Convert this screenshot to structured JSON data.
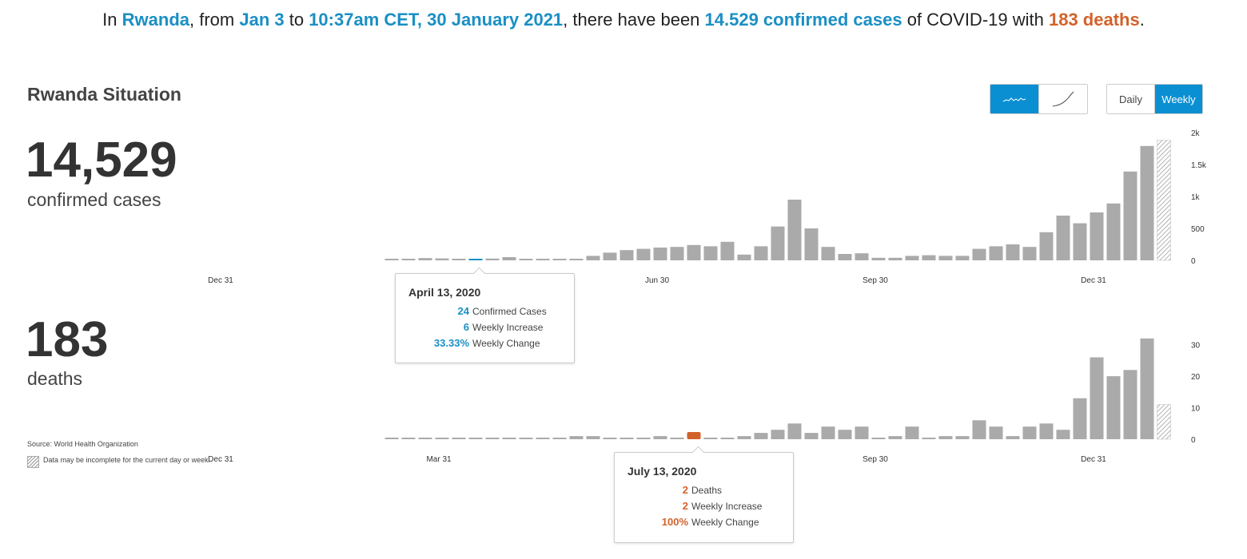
{
  "headline": {
    "prefix": "In ",
    "country": "Rwanda",
    "from_text": ", from ",
    "start_date": "Jan 3",
    "to_text": " to ",
    "end_time": "10:37am CET, 30 January 2021",
    "mid_text": ", there have been ",
    "cases_text": "14.529 confirmed cases",
    "of_text": " of COVID-19 with ",
    "deaths_text": "183 deaths",
    "suffix": "."
  },
  "colors": {
    "accent": "#0b8fd3",
    "cases": "#1a8fc4",
    "deaths": "#d2622b",
    "bar": "#aaaaaa"
  },
  "title": "Rwanda Situation",
  "cases": {
    "number": "14,529",
    "label": "confirmed cases"
  },
  "deaths": {
    "number": "183",
    "label": "deaths"
  },
  "controls": {
    "mode_icons": [
      "sparkline-icon",
      "cumulative-curve-icon"
    ],
    "mode_active": 0,
    "periods": [
      "Daily",
      "Weekly"
    ],
    "period_active": "Weekly"
  },
  "source": "Source: World Health Organization",
  "incomplete_note": "Data may be incomplete for the current day or week.",
  "tooltip_cases": {
    "date": "April 13, 2020",
    "rows": [
      {
        "value": "24",
        "label": "Confirmed Cases"
      },
      {
        "value": "6",
        "label": "Weekly Increase"
      },
      {
        "value": "33.33%",
        "label": "Weekly Change"
      }
    ]
  },
  "tooltip_deaths": {
    "date": "July 13, 2020",
    "rows": [
      {
        "value": "2",
        "label": "Deaths"
      },
      {
        "value": "2",
        "label": "Weekly Increase"
      },
      {
        "value": "100%",
        "label": "Weekly Change"
      }
    ]
  },
  "chart_data": [
    {
      "type": "bar",
      "id": "cases",
      "xlabel": "",
      "ylabel": "",
      "ylim": [
        0,
        2000
      ],
      "ytick_labels": [
        "0",
        "500",
        "1k",
        "1.5k",
        "2k"
      ],
      "yticks": [
        0,
        500,
        1000,
        1500,
        2000
      ],
      "xtick_labels": [
        "Dec 31",
        "Jun 30",
        "Sep 30",
        "Dec 31"
      ],
      "xtick_weeks": [
        0,
        26,
        39,
        52
      ],
      "first_week_index": 10,
      "highlight_index": 5,
      "incomplete_last": true,
      "values": [
        5,
        5,
        35,
        30,
        18,
        24,
        28,
        50,
        18,
        8,
        20,
        20,
        70,
        120,
        160,
        180,
        200,
        210,
        240,
        220,
        290,
        90,
        220,
        530,
        950,
        500,
        210,
        100,
        110,
        40,
        40,
        70,
        80,
        70,
        70,
        180,
        220,
        250,
        210,
        440,
        700,
        580,
        750,
        890,
        1390,
        1790,
        1880
      ]
    },
    {
      "type": "bar",
      "id": "deaths",
      "xlabel": "",
      "ylabel": "",
      "ylim": [
        0,
        35
      ],
      "ytick_labels": [
        "0",
        "10",
        "20",
        "30"
      ],
      "yticks": [
        0,
        10,
        20,
        30
      ],
      "xtick_labels": [
        "Dec 31",
        "Mar 31",
        "Sep 30",
        "Dec 31"
      ],
      "xtick_weeks": [
        0,
        13,
        39,
        52
      ],
      "first_week_index": 10,
      "highlight_index": 18,
      "incomplete_last": true,
      "values": [
        0,
        0,
        0,
        0,
        0,
        0,
        0,
        0,
        0,
        0,
        0,
        1,
        1,
        0,
        0,
        0,
        1,
        0,
        2,
        0,
        0,
        1,
        2,
        3,
        5,
        2,
        4,
        3,
        4,
        0,
        1,
        4,
        0,
        1,
        1,
        6,
        4,
        1,
        4,
        5,
        3,
        13,
        26,
        20,
        22,
        32,
        11
      ]
    }
  ]
}
